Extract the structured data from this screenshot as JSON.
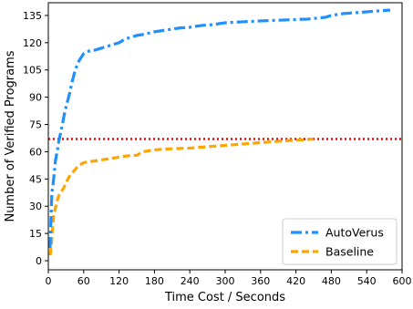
{
  "chart_data": {
    "type": "line",
    "title": "",
    "xlabel": "Time Cost / Seconds",
    "ylabel": "Number of Verified Programs",
    "xlim": [
      0,
      600
    ],
    "ylim": [
      -5,
      142
    ],
    "xticks": [
      0,
      60,
      120,
      180,
      240,
      300,
      360,
      420,
      480,
      540,
      600
    ],
    "yticks": [
      0,
      15,
      30,
      45,
      60,
      75,
      90,
      105,
      120,
      135
    ],
    "grid": false,
    "legend_position": "bottom-right",
    "series": [
      {
        "name": "AutoVerus",
        "color": "#1e90ff",
        "style": "dashdot",
        "x": [
          3,
          4,
          5,
          6,
          7,
          8,
          10,
          12,
          15,
          18,
          22,
          25,
          28,
          32,
          36,
          40,
          44,
          48,
          52,
          56,
          60,
          65,
          70,
          80,
          90,
          100,
          110,
          120,
          130,
          140,
          150,
          160,
          180,
          200,
          220,
          240,
          260,
          280,
          300,
          330,
          360,
          400,
          440,
          470,
          480,
          500,
          540,
          560,
          580
        ],
        "y": [
          7,
          18,
          28,
          37,
          40,
          42,
          48,
          55,
          60,
          66,
          72,
          77,
          82,
          87,
          92,
          98,
          103,
          107,
          110,
          112,
          114,
          115,
          115.5,
          116,
          117,
          118,
          119,
          120,
          122,
          123,
          124,
          124.5,
          126,
          127,
          128,
          128.5,
          129.5,
          130,
          131,
          131.5,
          132,
          132.5,
          133,
          134,
          135,
          136,
          137,
          137.5,
          138
        ]
      },
      {
        "name": "Baseline",
        "color": "#ffa500",
        "style": "dashed",
        "x": [
          3,
          5,
          7,
          9,
          12,
          15,
          18,
          22,
          26,
          30,
          35,
          40,
          45,
          50,
          55,
          60,
          70,
          80,
          90,
          100,
          110,
          120,
          130,
          140,
          150,
          160,
          180,
          200,
          240,
          280,
          320,
          360,
          400,
          430,
          450
        ],
        "y": [
          3,
          8,
          17,
          25,
          29,
          33,
          36,
          38,
          40,
          43,
          46,
          48,
          50,
          52,
          53,
          54,
          54.5,
          55,
          55.5,
          56,
          56.5,
          57,
          57.5,
          58,
          58,
          60,
          61,
          61.5,
          62,
          63,
          64,
          65,
          66,
          66.5,
          67
        ]
      }
    ],
    "reference_line": {
      "y": 67,
      "color": "#ff0000",
      "style": "dotted"
    }
  }
}
